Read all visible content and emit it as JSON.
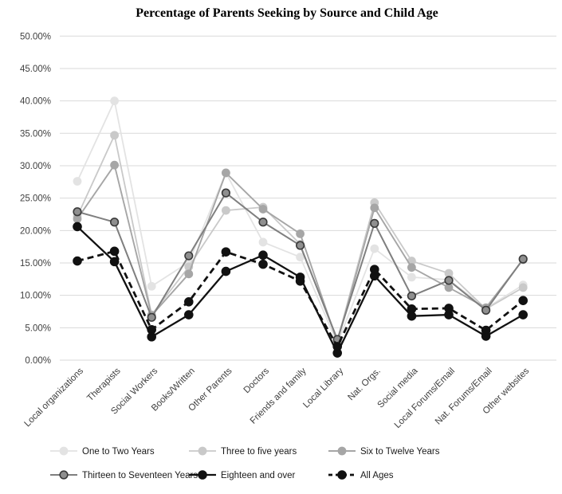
{
  "chart_data": {
    "type": "line",
    "title": "Percentage of Parents Seeking by Source and Child Age",
    "xlabel": "",
    "ylabel": "",
    "ylim": [
      0,
      50
    ],
    "y_ticks": [
      0,
      5,
      10,
      15,
      20,
      25,
      30,
      35,
      40,
      45,
      50
    ],
    "y_tick_labels": [
      "0.00%",
      "5.00%",
      "10.00%",
      "15.00%",
      "20.00%",
      "25.00%",
      "30.00%",
      "35.00%",
      "40.00%",
      "45.00%",
      "50.00%"
    ],
    "grid": "horizontal",
    "legend_position": "bottom",
    "categories": [
      "Local organizations",
      "Therapists",
      "Social Workers",
      "Books/Written",
      "Other Parents",
      "Doctors",
      "Friends and family",
      "Local Library",
      "Nat. Orgs.",
      "Social media",
      "Local Forums/Email",
      "Nat. Forums/Email",
      "Other websites"
    ],
    "series": [
      {
        "name": "One to Two Years",
        "values": [
          27.6,
          40.0,
          11.4,
          15.1,
          28.9,
          18.2,
          15.9,
          2.6,
          17.2,
          12.8,
          12.4,
          8.0,
          11.6
        ],
        "color": "#e3e3e3",
        "marker_fill": "#e3e3e3",
        "marker_stroke": "#e3e3e3",
        "dash": "",
        "line_width": 1.8,
        "marker_radius": 4.6
      },
      {
        "name": "Three to five years",
        "values": [
          22.2,
          34.7,
          7.0,
          14.4,
          23.1,
          23.6,
          17.9,
          3.0,
          24.3,
          15.3,
          13.4,
          7.9,
          11.2
        ],
        "color": "#c9c9c9",
        "marker_fill": "#c9c9c9",
        "marker_stroke": "#c9c9c9",
        "dash": "",
        "line_width": 1.8,
        "marker_radius": 4.6
      },
      {
        "name": "Six to Twelve Years",
        "values": [
          21.8,
          30.1,
          6.9,
          13.3,
          28.9,
          23.3,
          19.5,
          2.8,
          23.5,
          14.3,
          11.2,
          8.1,
          15.5
        ],
        "color": "#a6a6a6",
        "marker_fill": "#a6a6a6",
        "marker_stroke": "#a6a6a6",
        "dash": "",
        "line_width": 1.9,
        "marker_radius": 4.6
      },
      {
        "name": "Thirteen to Seventeen Years",
        "values": [
          22.9,
          21.3,
          6.6,
          16.1,
          25.8,
          21.3,
          17.7,
          3.2,
          21.1,
          9.9,
          12.3,
          7.7,
          15.6
        ],
        "color": "#7f7f7f",
        "marker_fill": "#8f8f8f",
        "marker_stroke": "#3a3a3a",
        "dash": "",
        "line_width": 2.0,
        "marker_radius": 4.8
      },
      {
        "name": "Eighteen and over",
        "values": [
          20.6,
          15.2,
          3.6,
          7.0,
          13.7,
          16.2,
          12.8,
          1.1,
          13.0,
          6.8,
          7.0,
          3.7,
          7.0
        ],
        "color": "#111111",
        "marker_fill": "#111111",
        "marker_stroke": "#111111",
        "dash": "",
        "line_width": 2.3,
        "marker_radius": 5.0
      },
      {
        "name": "All Ages",
        "values": [
          15.3,
          16.8,
          4.7,
          9.0,
          16.7,
          14.8,
          12.2,
          2.1,
          14.0,
          7.9,
          8.0,
          4.6,
          9.2
        ],
        "color": "#111111",
        "marker_fill": "#111111",
        "marker_stroke": "#111111",
        "dash": "8 5",
        "line_width": 2.8,
        "marker_radius": 5.0
      }
    ],
    "legend": {
      "rows": [
        [
          "One to Two Years",
          "Three to five years",
          "Six to Twelve Years"
        ],
        [
          "Thirteen to Seventeen Years",
          "Eighteen and over",
          "All Ages"
        ]
      ]
    },
    "colors": {
      "gridline": "#d9d9d9",
      "tick_text": "#404040",
      "legend_text": "#1a1a1a"
    }
  }
}
